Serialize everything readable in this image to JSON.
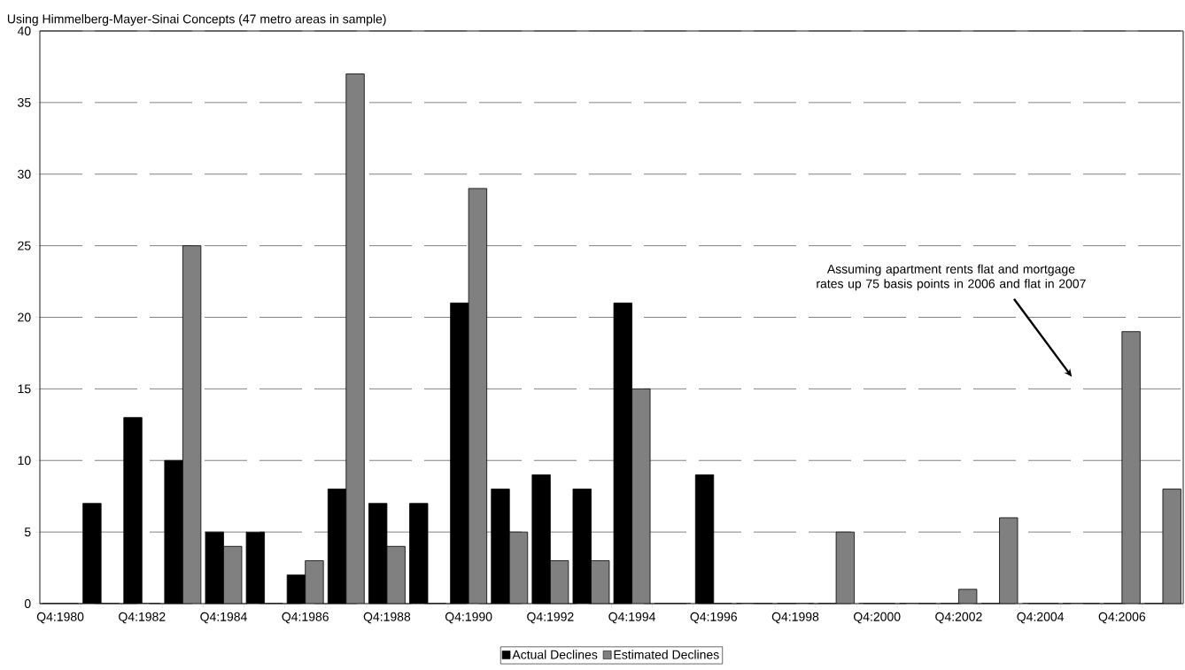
{
  "chart_data": {
    "type": "bar",
    "title": "Using Himmelberg-Mayer-Sinai Concepts (47 metro areas in sample)",
    "categories": [
      "Q4:1980",
      null,
      "Q4:1982",
      null,
      "Q4:1984",
      null,
      "Q4:1986",
      null,
      "Q4:1988",
      null,
      "Q4:1990",
      null,
      "Q4:1992",
      null,
      "Q4:1994",
      null,
      "Q4:1996",
      null,
      "Q4:1998",
      null,
      "Q4:2000",
      null,
      "Q4:2002",
      null,
      "Q4:2004",
      null,
      "Q4:2006",
      null
    ],
    "series": [
      {
        "name": "Actual Declines",
        "color": "#000000",
        "values": [
          0,
          7,
          13,
          10,
          5,
          5,
          2,
          8,
          7,
          7,
          21,
          8,
          9,
          8,
          21,
          0,
          9,
          0,
          0,
          0,
          0,
          0,
          0,
          0,
          0,
          0,
          0,
          0
        ]
      },
      {
        "name": "Estimated Declines",
        "color": "#808080",
        "values": [
          0,
          0,
          0,
          25,
          4,
          0,
          3,
          37,
          4,
          0,
          29,
          5,
          3,
          3,
          15,
          0,
          0,
          0,
          0,
          5,
          0,
          0,
          1,
          6,
          0,
          0,
          19,
          8
        ]
      }
    ],
    "ylim": [
      0,
      40
    ],
    "yticks": [
      0,
      5,
      10,
      15,
      20,
      25,
      30,
      35,
      40
    ],
    "grid": "y",
    "legend": "bottom",
    "annotations": [
      "Assuming apartment rents flat and mortgage rates up 75 basis points in 2006 and flat in 2007"
    ]
  }
}
